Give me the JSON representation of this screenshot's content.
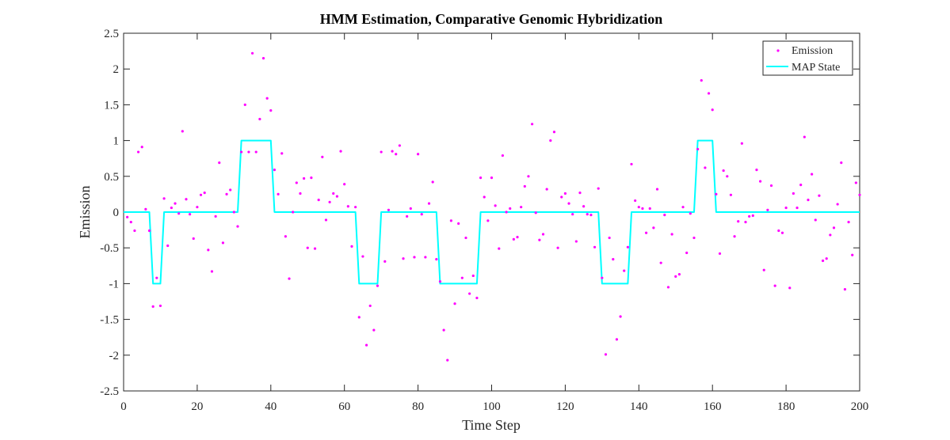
{
  "chart_data": {
    "type": "line",
    "title": "HMM Estimation, Comparative Genomic Hybridization",
    "xlabel": "Time Step",
    "ylabel": "Emission",
    "xlim": [
      0,
      200
    ],
    "ylim": [
      -2.5,
      2.5
    ],
    "x_ticks": [
      0,
      20,
      40,
      60,
      80,
      100,
      120,
      140,
      160,
      180,
      200
    ],
    "x_tick_labels": [
      "0",
      "20",
      "40",
      "60",
      "80",
      "100",
      "120",
      "140",
      "160",
      "180",
      "200"
    ],
    "y_ticks": [
      2.5,
      2,
      1.5,
      1,
      0.5,
      0,
      -0.5,
      -1,
      -1.5,
      -2,
      -2.5
    ],
    "y_tick_labels": [
      "2.5",
      "2",
      "1.5",
      "1",
      "0.5",
      "0",
      "-0.5",
      "-1",
      "-1.5",
      "-2",
      "-2.5"
    ],
    "grid": false,
    "legend_position": "top-right",
    "series": [
      {
        "name": "Emission",
        "type": "scatter",
        "color": "#ff00ff",
        "points": [
          [
            1,
            -0.07
          ],
          [
            2,
            -0.14
          ],
          [
            3,
            -0.26
          ],
          [
            4,
            0.84
          ],
          [
            5,
            0.91
          ],
          [
            6,
            0.04
          ],
          [
            7,
            -0.26
          ],
          [
            8,
            -1.32
          ],
          [
            9,
            -0.92
          ],
          [
            10,
            -1.31
          ],
          [
            11,
            0.19
          ],
          [
            12,
            -0.47
          ],
          [
            13,
            0.06
          ],
          [
            14,
            0.12
          ],
          [
            15,
            -0.02
          ],
          [
            16,
            1.13
          ],
          [
            17,
            0.18
          ],
          [
            18,
            -0.03
          ],
          [
            19,
            -0.37
          ],
          [
            20,
            0.07
          ],
          [
            21,
            0.24
          ],
          [
            22,
            0.27
          ],
          [
            23,
            -0.53
          ],
          [
            24,
            -0.83
          ],
          [
            25,
            -0.06
          ],
          [
            26,
            0.69
          ],
          [
            27,
            -0.43
          ],
          [
            28,
            0.25
          ],
          [
            29,
            0.31
          ],
          [
            30,
            0.0
          ],
          [
            31,
            -0.2
          ],
          [
            32,
            0.84
          ],
          [
            33,
            1.5
          ],
          [
            34,
            0.84
          ],
          [
            35,
            2.22
          ],
          [
            36,
            0.84
          ],
          [
            37,
            1.3
          ],
          [
            38,
            2.15
          ],
          [
            39,
            1.59
          ],
          [
            40,
            1.42
          ],
          [
            41,
            0.59
          ],
          [
            42,
            0.25
          ],
          [
            43,
            0.82
          ],
          [
            44,
            -0.34
          ],
          [
            45,
            -0.93
          ],
          [
            46,
            0.0
          ],
          [
            47,
            0.41
          ],
          [
            48,
            0.26
          ],
          [
            49,
            0.47
          ],
          [
            50,
            -0.5
          ],
          [
            51,
            0.48
          ],
          [
            52,
            -0.51
          ],
          [
            53,
            0.17
          ],
          [
            54,
            0.77
          ],
          [
            55,
            -0.11
          ],
          [
            56,
            0.14
          ],
          [
            57,
            0.26
          ],
          [
            58,
            0.22
          ],
          [
            59,
            0.85
          ],
          [
            60,
            0.39
          ],
          [
            61,
            0.08
          ],
          [
            62,
            -0.48
          ],
          [
            63,
            0.07
          ],
          [
            64,
            -1.47
          ],
          [
            65,
            -0.62
          ],
          [
            66,
            -1.86
          ],
          [
            67,
            -1.31
          ],
          [
            68,
            -1.65
          ],
          [
            69,
            -1.03
          ],
          [
            70,
            0.84
          ],
          [
            71,
            -0.69
          ],
          [
            72,
            0.03
          ],
          [
            73,
            0.85
          ],
          [
            74,
            0.81
          ],
          [
            75,
            0.93
          ],
          [
            76,
            -0.65
          ],
          [
            77,
            -0.06
          ],
          [
            78,
            0.05
          ],
          [
            79,
            -0.63
          ],
          [
            80,
            0.81
          ],
          [
            81,
            -0.03
          ],
          [
            82,
            -0.63
          ],
          [
            83,
            0.12
          ],
          [
            84,
            0.42
          ],
          [
            85,
            -0.66
          ],
          [
            86,
            -0.97
          ],
          [
            87,
            -1.65
          ],
          [
            88,
            -2.07
          ],
          [
            89,
            -0.12
          ],
          [
            90,
            -1.28
          ],
          [
            91,
            -0.16
          ],
          [
            92,
            -0.92
          ],
          [
            93,
            -0.36
          ],
          [
            94,
            -1.14
          ],
          [
            95,
            -0.89
          ],
          [
            96,
            -1.2
          ],
          [
            97,
            0.48
          ],
          [
            98,
            0.21
          ],
          [
            99,
            -0.12
          ],
          [
            100,
            0.48
          ],
          [
            101,
            0.09
          ],
          [
            102,
            -0.51
          ],
          [
            103,
            0.79
          ],
          [
            104,
            0.0
          ],
          [
            105,
            0.05
          ],
          [
            106,
            -0.38
          ],
          [
            107,
            -0.35
          ],
          [
            108,
            0.07
          ],
          [
            109,
            0.36
          ],
          [
            110,
            0.5
          ],
          [
            111,
            1.23
          ],
          [
            112,
            -0.01
          ],
          [
            113,
            -0.39
          ],
          [
            114,
            -0.31
          ],
          [
            115,
            0.32
          ],
          [
            116,
            1.0
          ],
          [
            117,
            1.12
          ],
          [
            118,
            -0.5
          ],
          [
            119,
            0.21
          ],
          [
            120,
            0.26
          ],
          [
            121,
            0.12
          ],
          [
            122,
            -0.03
          ],
          [
            123,
            -0.41
          ],
          [
            124,
            0.27
          ],
          [
            125,
            0.08
          ],
          [
            126,
            -0.03
          ],
          [
            127,
            -0.04
          ],
          [
            128,
            -0.49
          ],
          [
            129,
            0.33
          ],
          [
            130,
            -0.92
          ],
          [
            131,
            -1.99
          ],
          [
            132,
            -0.36
          ],
          [
            133,
            -0.66
          ],
          [
            134,
            -1.78
          ],
          [
            135,
            -1.46
          ],
          [
            136,
            -0.82
          ],
          [
            137,
            -0.49
          ],
          [
            138,
            0.67
          ],
          [
            139,
            0.16
          ],
          [
            140,
            0.07
          ],
          [
            141,
            0.05
          ],
          [
            142,
            -0.29
          ],
          [
            143,
            0.05
          ],
          [
            144,
            -0.22
          ],
          [
            145,
            0.32
          ],
          [
            146,
            -0.71
          ],
          [
            147,
            -0.04
          ],
          [
            148,
            -1.05
          ],
          [
            149,
            -0.31
          ],
          [
            150,
            -0.9
          ],
          [
            151,
            -0.87
          ],
          [
            152,
            0.07
          ],
          [
            153,
            -0.57
          ],
          [
            154,
            -0.02
          ],
          [
            155,
            -0.36
          ],
          [
            156,
            0.88
          ],
          [
            157,
            1.84
          ],
          [
            158,
            0.62
          ],
          [
            159,
            1.66
          ],
          [
            160,
            1.43
          ],
          [
            161,
            0.25
          ],
          [
            162,
            -0.58
          ],
          [
            163,
            0.58
          ],
          [
            164,
            0.5
          ],
          [
            165,
            0.24
          ],
          [
            166,
            -0.34
          ],
          [
            167,
            -0.13
          ],
          [
            168,
            0.96
          ],
          [
            169,
            -0.14
          ],
          [
            170,
            -0.06
          ],
          [
            171,
            -0.05
          ],
          [
            172,
            0.59
          ],
          [
            173,
            0.43
          ],
          [
            174,
            -0.81
          ],
          [
            175,
            0.03
          ],
          [
            176,
            0.37
          ],
          [
            177,
            -1.03
          ],
          [
            178,
            -0.26
          ],
          [
            179,
            -0.29
          ],
          [
            180,
            0.06
          ],
          [
            181,
            -1.06
          ],
          [
            182,
            0.26
          ],
          [
            183,
            0.06
          ],
          [
            184,
            0.38
          ],
          [
            185,
            1.05
          ],
          [
            186,
            0.17
          ],
          [
            187,
            0.53
          ],
          [
            188,
            -0.11
          ],
          [
            189,
            0.23
          ],
          [
            190,
            -0.68
          ],
          [
            191,
            -0.65
          ],
          [
            192,
            -0.32
          ],
          [
            193,
            -0.22
          ],
          [
            194,
            0.11
          ],
          [
            195,
            0.69
          ],
          [
            196,
            -1.08
          ],
          [
            197,
            -0.14
          ],
          [
            198,
            -0.6
          ],
          [
            199,
            0.41
          ],
          [
            200,
            0.24
          ]
        ]
      },
      {
        "name": "MAP State",
        "type": "line",
        "color": "#00ffff",
        "points": [
          [
            0,
            0
          ],
          [
            7,
            0
          ],
          [
            8,
            -1
          ],
          [
            10,
            -1
          ],
          [
            11,
            0
          ],
          [
            31,
            0
          ],
          [
            32,
            1
          ],
          [
            40,
            1
          ],
          [
            41,
            0
          ],
          [
            63,
            0
          ],
          [
            64,
            -1
          ],
          [
            69,
            -1
          ],
          [
            70,
            0
          ],
          [
            85,
            0
          ],
          [
            86,
            -1
          ],
          [
            96,
            -1
          ],
          [
            97,
            0
          ],
          [
            129,
            0
          ],
          [
            130,
            -1
          ],
          [
            137,
            -1
          ],
          [
            138,
            0
          ],
          [
            155,
            0
          ],
          [
            156,
            1
          ],
          [
            160,
            1
          ],
          [
            161,
            0
          ],
          [
            200,
            0
          ]
        ]
      }
    ]
  }
}
